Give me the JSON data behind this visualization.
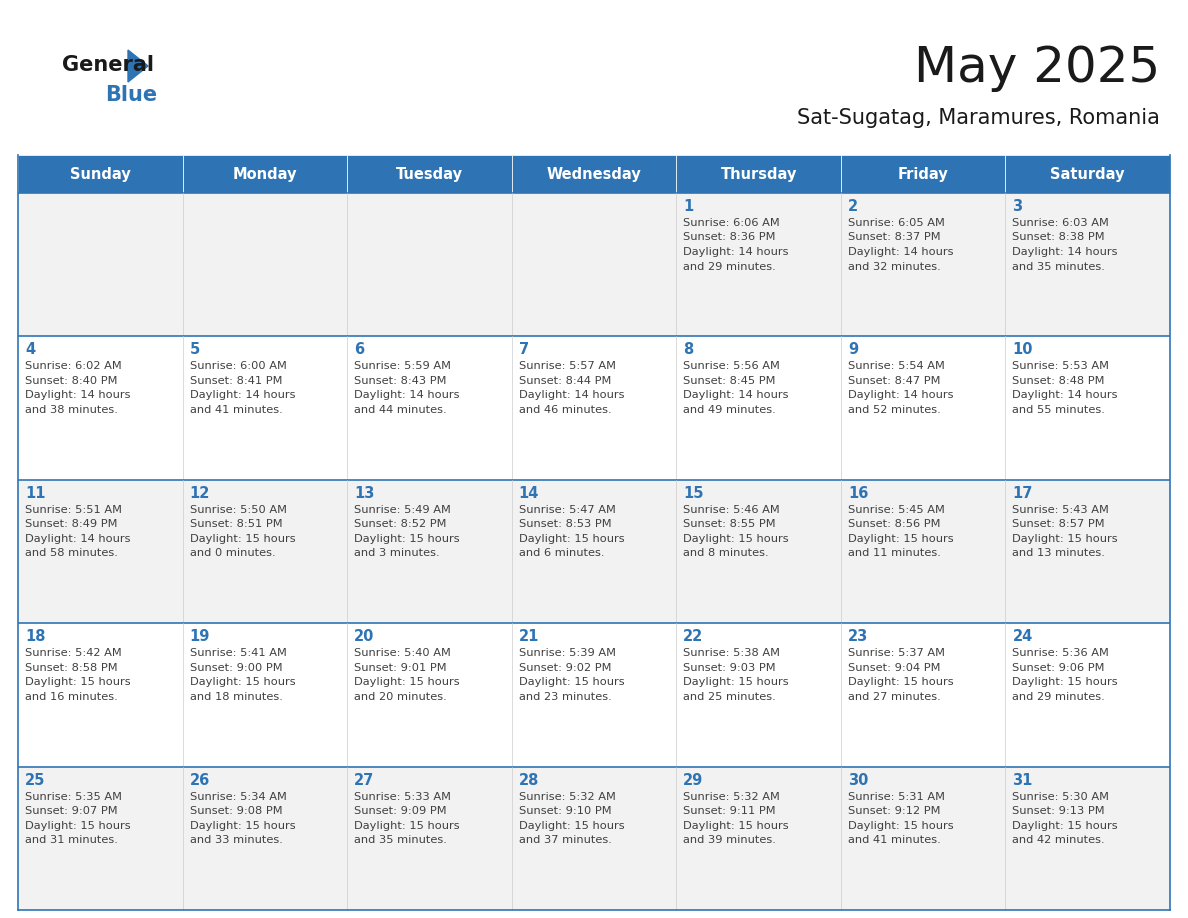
{
  "title": "May 2025",
  "subtitle": "Sat-Sugatag, Maramures, Romania",
  "days_of_week": [
    "Sunday",
    "Monday",
    "Tuesday",
    "Wednesday",
    "Thursday",
    "Friday",
    "Saturday"
  ],
  "header_bg": "#2E74B5",
  "header_text": "#FFFFFF",
  "cell_bg_odd": "#F2F2F2",
  "cell_bg_even": "#FFFFFF",
  "border_color": "#2E74B5",
  "text_color": "#404040",
  "day_number_color": "#2E74B5",
  "calendar_data": [
    [
      null,
      null,
      null,
      null,
      {
        "day": 1,
        "sunrise": "6:06 AM",
        "sunset": "8:36 PM",
        "daylight_h": "14 hours",
        "daylight_m": "and 29 minutes."
      },
      {
        "day": 2,
        "sunrise": "6:05 AM",
        "sunset": "8:37 PM",
        "daylight_h": "14 hours",
        "daylight_m": "and 32 minutes."
      },
      {
        "day": 3,
        "sunrise": "6:03 AM",
        "sunset": "8:38 PM",
        "daylight_h": "14 hours",
        "daylight_m": "and 35 minutes."
      }
    ],
    [
      {
        "day": 4,
        "sunrise": "6:02 AM",
        "sunset": "8:40 PM",
        "daylight_h": "14 hours",
        "daylight_m": "and 38 minutes."
      },
      {
        "day": 5,
        "sunrise": "6:00 AM",
        "sunset": "8:41 PM",
        "daylight_h": "14 hours",
        "daylight_m": "and 41 minutes."
      },
      {
        "day": 6,
        "sunrise": "5:59 AM",
        "sunset": "8:43 PM",
        "daylight_h": "14 hours",
        "daylight_m": "and 44 minutes."
      },
      {
        "day": 7,
        "sunrise": "5:57 AM",
        "sunset": "8:44 PM",
        "daylight_h": "14 hours",
        "daylight_m": "and 46 minutes."
      },
      {
        "day": 8,
        "sunrise": "5:56 AM",
        "sunset": "8:45 PM",
        "daylight_h": "14 hours",
        "daylight_m": "and 49 minutes."
      },
      {
        "day": 9,
        "sunrise": "5:54 AM",
        "sunset": "8:47 PM",
        "daylight_h": "14 hours",
        "daylight_m": "and 52 minutes."
      },
      {
        "day": 10,
        "sunrise": "5:53 AM",
        "sunset": "8:48 PM",
        "daylight_h": "14 hours",
        "daylight_m": "and 55 minutes."
      }
    ],
    [
      {
        "day": 11,
        "sunrise": "5:51 AM",
        "sunset": "8:49 PM",
        "daylight_h": "14 hours",
        "daylight_m": "and 58 minutes."
      },
      {
        "day": 12,
        "sunrise": "5:50 AM",
        "sunset": "8:51 PM",
        "daylight_h": "15 hours",
        "daylight_m": "and 0 minutes."
      },
      {
        "day": 13,
        "sunrise": "5:49 AM",
        "sunset": "8:52 PM",
        "daylight_h": "15 hours",
        "daylight_m": "and 3 minutes."
      },
      {
        "day": 14,
        "sunrise": "5:47 AM",
        "sunset": "8:53 PM",
        "daylight_h": "15 hours",
        "daylight_m": "and 6 minutes."
      },
      {
        "day": 15,
        "sunrise": "5:46 AM",
        "sunset": "8:55 PM",
        "daylight_h": "15 hours",
        "daylight_m": "and 8 minutes."
      },
      {
        "day": 16,
        "sunrise": "5:45 AM",
        "sunset": "8:56 PM",
        "daylight_h": "15 hours",
        "daylight_m": "and 11 minutes."
      },
      {
        "day": 17,
        "sunrise": "5:43 AM",
        "sunset": "8:57 PM",
        "daylight_h": "15 hours",
        "daylight_m": "and 13 minutes."
      }
    ],
    [
      {
        "day": 18,
        "sunrise": "5:42 AM",
        "sunset": "8:58 PM",
        "daylight_h": "15 hours",
        "daylight_m": "and 16 minutes."
      },
      {
        "day": 19,
        "sunrise": "5:41 AM",
        "sunset": "9:00 PM",
        "daylight_h": "15 hours",
        "daylight_m": "and 18 minutes."
      },
      {
        "day": 20,
        "sunrise": "5:40 AM",
        "sunset": "9:01 PM",
        "daylight_h": "15 hours",
        "daylight_m": "and 20 minutes."
      },
      {
        "day": 21,
        "sunrise": "5:39 AM",
        "sunset": "9:02 PM",
        "daylight_h": "15 hours",
        "daylight_m": "and 23 minutes."
      },
      {
        "day": 22,
        "sunrise": "5:38 AM",
        "sunset": "9:03 PM",
        "daylight_h": "15 hours",
        "daylight_m": "and 25 minutes."
      },
      {
        "day": 23,
        "sunrise": "5:37 AM",
        "sunset": "9:04 PM",
        "daylight_h": "15 hours",
        "daylight_m": "and 27 minutes."
      },
      {
        "day": 24,
        "sunrise": "5:36 AM",
        "sunset": "9:06 PM",
        "daylight_h": "15 hours",
        "daylight_m": "and 29 minutes."
      }
    ],
    [
      {
        "day": 25,
        "sunrise": "5:35 AM",
        "sunset": "9:07 PM",
        "daylight_h": "15 hours",
        "daylight_m": "and 31 minutes."
      },
      {
        "day": 26,
        "sunrise": "5:34 AM",
        "sunset": "9:08 PM",
        "daylight_h": "15 hours",
        "daylight_m": "and 33 minutes."
      },
      {
        "day": 27,
        "sunrise": "5:33 AM",
        "sunset": "9:09 PM",
        "daylight_h": "15 hours",
        "daylight_m": "and 35 minutes."
      },
      {
        "day": 28,
        "sunrise": "5:32 AM",
        "sunset": "9:10 PM",
        "daylight_h": "15 hours",
        "daylight_m": "and 37 minutes."
      },
      {
        "day": 29,
        "sunrise": "5:32 AM",
        "sunset": "9:11 PM",
        "daylight_h": "15 hours",
        "daylight_m": "and 39 minutes."
      },
      {
        "day": 30,
        "sunrise": "5:31 AM",
        "sunset": "9:12 PM",
        "daylight_h": "15 hours",
        "daylight_m": "and 41 minutes."
      },
      {
        "day": 31,
        "sunrise": "5:30 AM",
        "sunset": "9:13 PM",
        "daylight_h": "15 hours",
        "daylight_m": "and 42 minutes."
      }
    ]
  ]
}
